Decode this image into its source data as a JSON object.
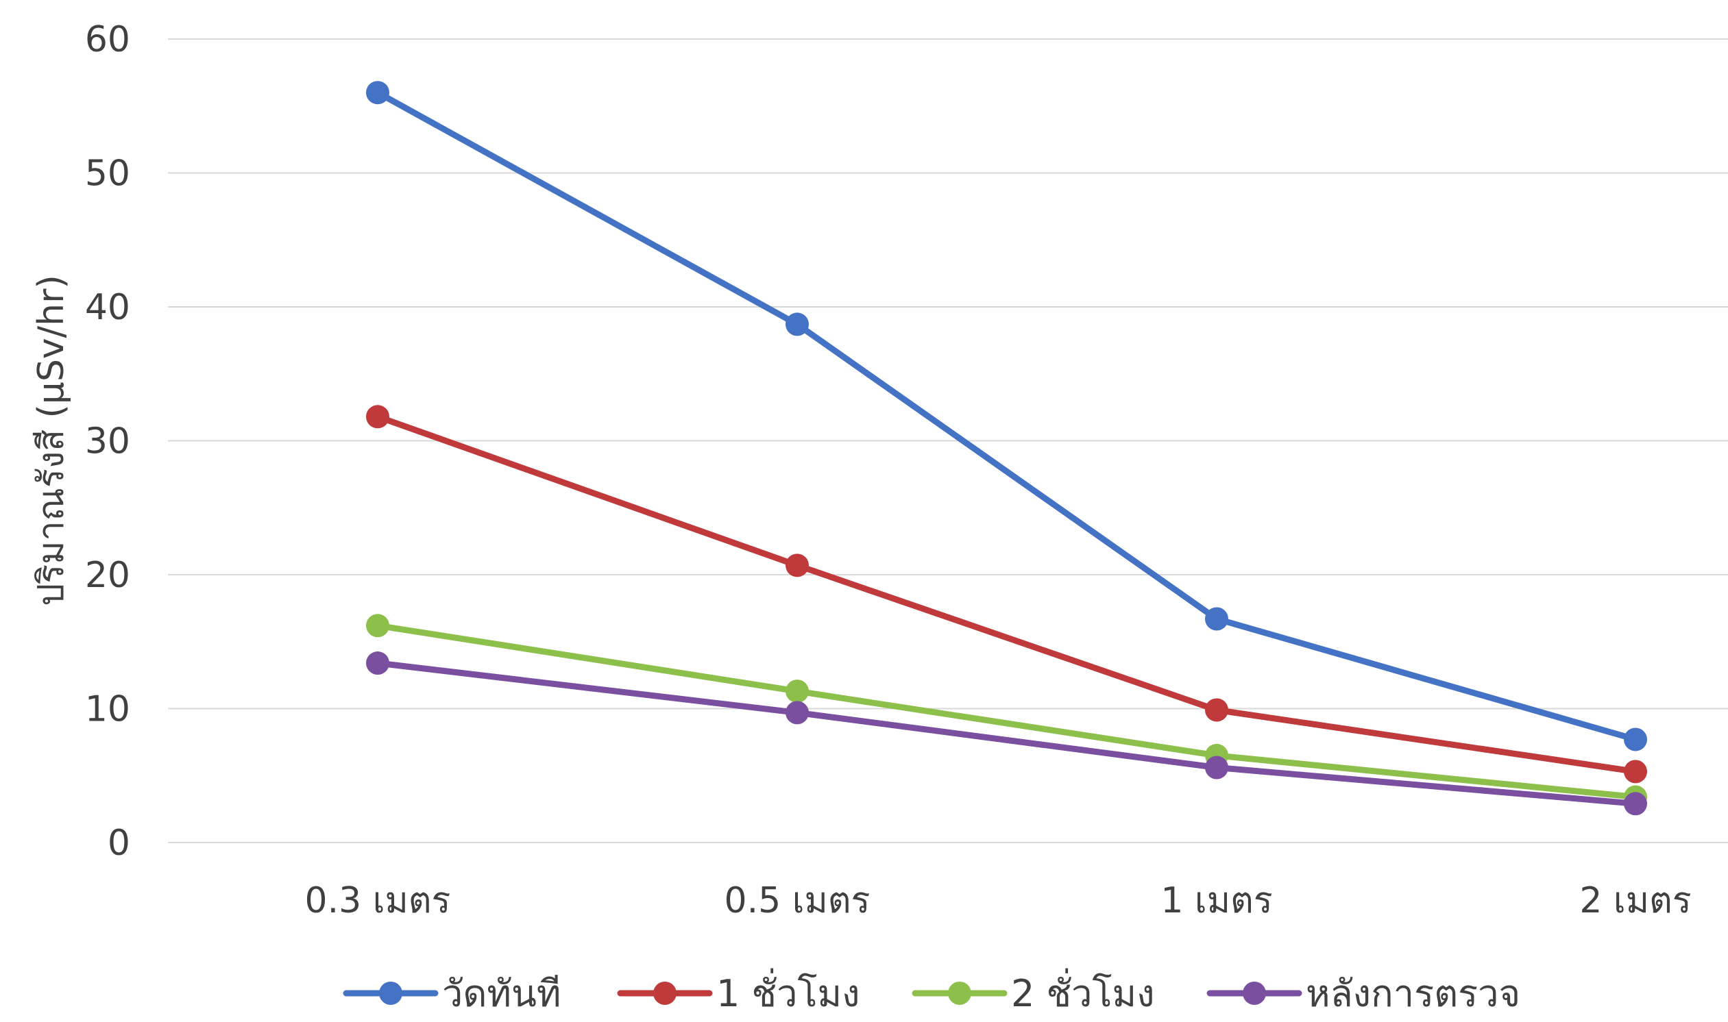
{
  "chart_data": {
    "type": "line",
    "title": "",
    "xlabel": "",
    "ylabel": "ปริมาณรังสี (µSv/hr)",
    "categories": [
      "0.3 เมตร",
      "0.5 เมตร",
      "1 เมตร",
      "2 เมตร"
    ],
    "ylim": [
      0,
      60
    ],
    "yticks": [
      0,
      10,
      20,
      30,
      40,
      50,
      60
    ],
    "grid": true,
    "legend_position": "bottom",
    "series": [
      {
        "name": "วัดทันที",
        "color": "#4472C4",
        "values": [
          56,
          38.7,
          16.7,
          7.7
        ]
      },
      {
        "name": "1 ชั่วโมง",
        "color": "#C0393B",
        "values": [
          31.8,
          20.7,
          9.9,
          5.3
        ]
      },
      {
        "name": "2 ชั่วโมง",
        "color": "#8CC04B",
        "values": [
          16.2,
          11.3,
          6.5,
          3.4
        ]
      },
      {
        "name": "หลังการตรวจ",
        "color": "#7B4FA0",
        "values": [
          13.4,
          9.7,
          5.6,
          2.9
        ]
      }
    ]
  }
}
